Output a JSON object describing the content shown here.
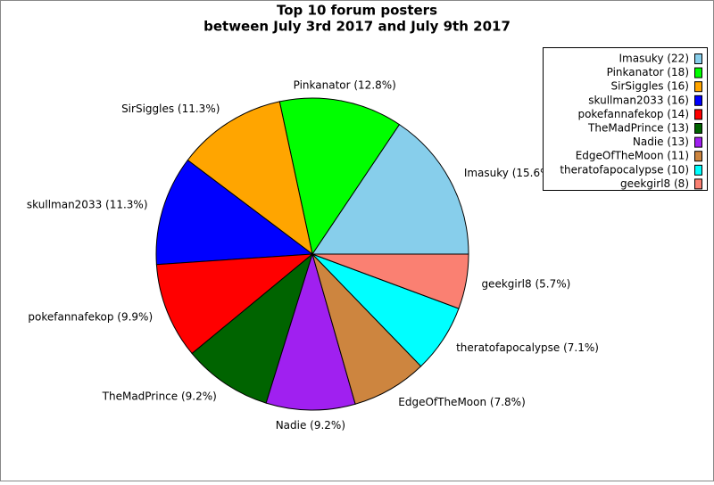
{
  "chart_data": {
    "type": "pie",
    "title_lines": [
      "Top 10 forum posters",
      "between July 3rd 2017 and July 9th 2017"
    ],
    "values": [
      22,
      18,
      16,
      16,
      14,
      13,
      13,
      11,
      10,
      8
    ],
    "value_labels": [
      "Imasuky (22)",
      "Pinkanator (18)",
      "SirSiggles (16)",
      "skullman2033 (16)",
      "pokefannafekop (14)",
      "TheMadPrince (13)",
      "Nadie (13)",
      "EdgeOfTheMoon (11)",
      "theratofapocalypse (10)",
      "geekgirl8 (8)"
    ],
    "slice_labels": [
      "Imasuky (15.6%)",
      "Pinkanator (12.8%)",
      "SirSiggles (11.3%)",
      "skullman2033 (11.3%)",
      "pokefannafekop (9.9%)",
      "TheMadPrince (9.2%)",
      "Nadie (9.2%)",
      "EdgeOfTheMoon (7.8%)",
      "theratofapocalypse (7.1%)",
      "geekgirl8 (5.7%)"
    ],
    "colors": [
      "#87ceeb",
      "#00ff00",
      "#ffa500",
      "#0000ff",
      "#ff0000",
      "#006400",
      "#a020f0",
      "#cd853f",
      "#00ffff",
      "#fa8072"
    ],
    "legend": "upper right"
  }
}
